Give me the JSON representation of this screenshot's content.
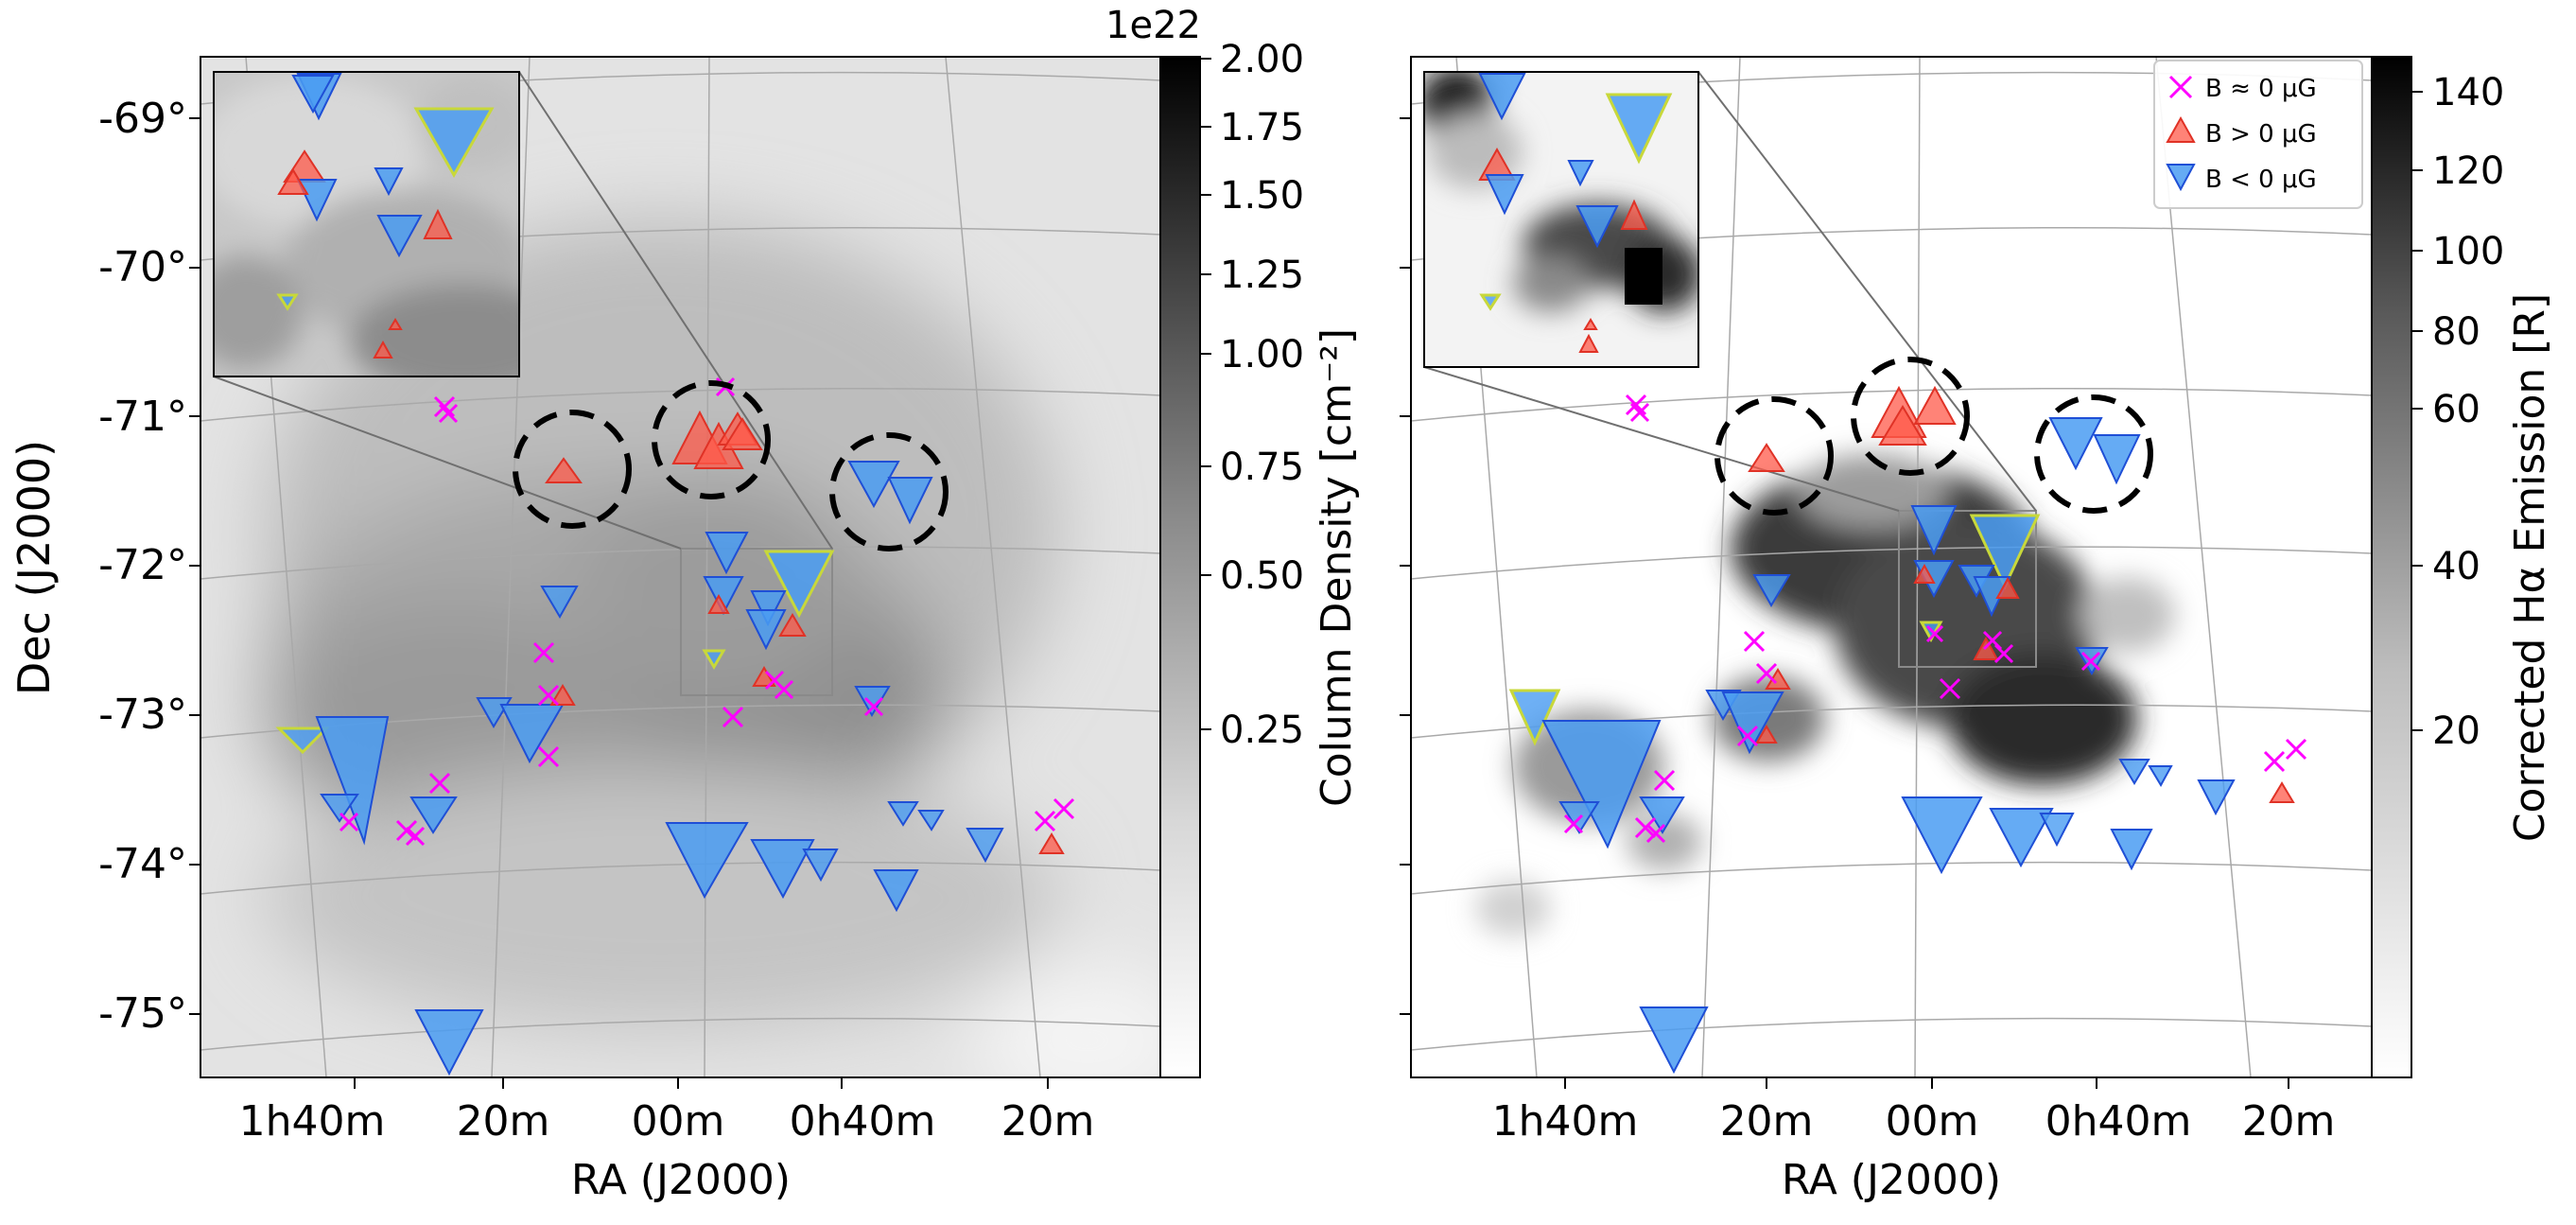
{
  "chart_data": [
    {
      "type": "scatter",
      "title": "",
      "panel": "left",
      "xlabel": "RA (J2000)",
      "ylabel": "Dec (J2000)",
      "x_ticks": [
        "1h40m",
        "20m",
        "00m",
        "0h40m",
        "20m"
      ],
      "y_ticks": [
        "-69°",
        "-70°",
        "-71°",
        "-72°",
        "-73°",
        "-74°",
        "-75°"
      ],
      "ylim": [
        -75.3,
        -68.6
      ],
      "background": "HI column density map",
      "colorbar": {
        "label": "Column Density [cm⁻²]",
        "scale": "log",
        "multiplier": "1e22",
        "ticks": [
          "2.00",
          "1.75",
          "1.50",
          "1.25",
          "1.00",
          "0.75",
          "0.50",
          "0.25"
        ],
        "range": [
          0.0,
          2.0
        ]
      },
      "highlight_circles": 3,
      "has_inset": true
    },
    {
      "type": "scatter",
      "title": "",
      "panel": "right",
      "xlabel": "RA (J2000)",
      "ylabel": "",
      "x_ticks": [
        "1h40m",
        "20m",
        "00m",
        "0h40m",
        "20m"
      ],
      "background": "Corrected Hα emission map",
      "colorbar": {
        "label": "Corrected Hα Emission [R]",
        "scale": "log",
        "ticks": [
          "140",
          "120",
          "100",
          "80",
          "60",
          "40",
          "20"
        ],
        "range": [
          0,
          150
        ]
      },
      "legend": {
        "position": "top-right",
        "entries": [
          {
            "label": "B ≈ 0 μG",
            "marker": "x",
            "color": "#ff00ff"
          },
          {
            "label": "B > 0 μG",
            "marker": "triangle-up",
            "color": "#ff4c3c"
          },
          {
            "label": "B < 0 μG",
            "marker": "triangle-down",
            "color": "#3a8ff0"
          }
        ]
      },
      "highlight_circles": 3,
      "has_inset": true
    }
  ],
  "colors": {
    "positive": "#ff5a4a",
    "negative": "#4a9cf2",
    "zero": "#ff00ff",
    "circle": "#000000"
  }
}
